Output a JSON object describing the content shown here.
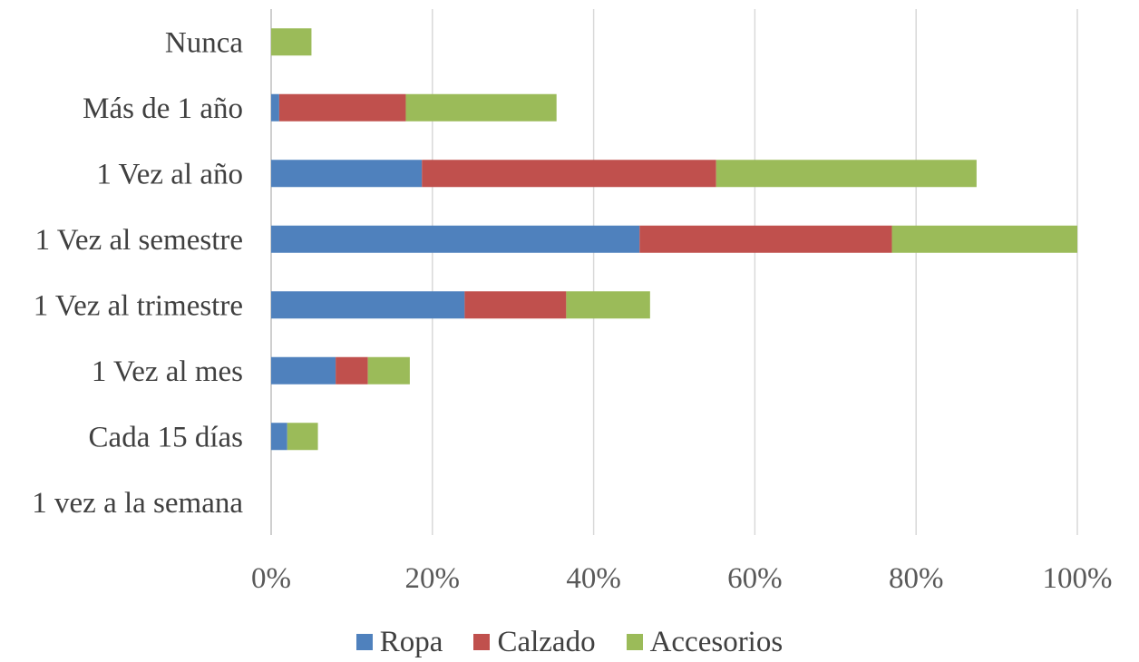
{
  "chart_data": {
    "type": "bar",
    "orientation": "horizontal",
    "stacked": true,
    "categories": [
      "Nunca",
      "Más de 1 año",
      "1 Vez al año",
      "1 Vez al semestre",
      "1 Vez al trimestre",
      "1 Vez al mes",
      "Cada 15 días",
      "1 vez a la semana"
    ],
    "series": [
      {
        "name": "Ropa",
        "color": "#4f81bd",
        "values": [
          0,
          1,
          18.7,
          45.7,
          24,
          8,
          2,
          0
        ]
      },
      {
        "name": "Calzado",
        "color": "#c0504d",
        "values": [
          0,
          15.7,
          36.5,
          31.3,
          12.6,
          4,
          0,
          0
        ]
      },
      {
        "name": "Accesorios",
        "color": "#9bbb59",
        "values": [
          5,
          18.7,
          32.3,
          23,
          10.4,
          5.2,
          3.8,
          0
        ]
      }
    ],
    "xlim": [
      0,
      100
    ],
    "xticks": [
      "0%",
      "20%",
      "40%",
      "60%",
      "80%",
      "100%"
    ],
    "grid": true,
    "legend_position": "bottom",
    "title": "",
    "xlabel": "",
    "ylabel": ""
  }
}
